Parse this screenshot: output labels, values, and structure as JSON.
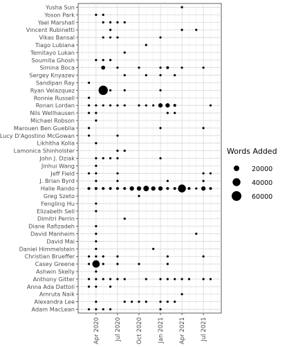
{
  "chart_data": {
    "type": "scatter",
    "title": "",
    "xlabel": "",
    "ylabel": "",
    "x_ticks": [
      "Apr 2020",
      "Jul 2020",
      "Oct 2020",
      "Jan 2021",
      "Apr 2021",
      "Jul 2021"
    ],
    "x_range": [
      "2020-02",
      "2021-09"
    ],
    "grid": true,
    "legend": {
      "title": "Words Added",
      "position": "right",
      "entries": [
        {
          "label": "20000",
          "value": 20000
        },
        {
          "label": "40000",
          "value": 40000
        },
        {
          "label": "60000",
          "value": 60000
        }
      ]
    },
    "categories": [
      "Yusha Sun",
      "Yoson Park",
      "Yael Marshall",
      "Vincent Rubinetti",
      "Vikas Bansal",
      "Tiago Lubiana",
      "Temitayo Lukan",
      "Soumita Ghosh",
      "Simina Boca",
      "Sergey Knyazev",
      "Sandipan Ray",
      "Ryan Velazquez",
      "Ronnie Russell",
      "Ronan Lordan",
      "Nils Wellhausen",
      "Michael Robson",
      "Marouen Ben Guebila",
      "Lucy D'Agostino McGowan",
      "Likhitha Kolla",
      "Lamonica Shinholster",
      "John J. Dziak",
      "Jinhui Wang",
      "Jeff Field",
      "J. Brian Byrd",
      "Halie Rando",
      "Greg Szeto",
      "Fengling Hu",
      "Elizabeth Sell",
      "Dimitri Perrin",
      "Diane Rafizadeh",
      "David Manheim",
      "David Mai",
      "Daniel Himmelstein",
      "Christian Brueffer",
      "Casey Greene",
      "Ashwin Skelly",
      "Anthony Gitter",
      "Anna Ada Dattoli",
      "Amruta Naik",
      "Alexandra Lee",
      "Adam MacLean"
    ],
    "points": [
      {
        "name": "Yusha Sun",
        "x": "2021-04",
        "y": 500
      },
      {
        "name": "Yoson Park",
        "x": "2020-04",
        "y": 500
      },
      {
        "name": "Yoson Park",
        "x": "2020-05",
        "y": 500
      },
      {
        "name": "Yael Marshall",
        "x": "2020-05",
        "y": 500
      },
      {
        "name": "Yael Marshall",
        "x": "2020-06",
        "y": 2500
      },
      {
        "name": "Yael Marshall",
        "x": "2020-07",
        "y": 2500
      },
      {
        "name": "Yael Marshall",
        "x": "2020-08",
        "y": 500
      },
      {
        "name": "Vincent Rubinetti",
        "x": "2020-06",
        "y": 500
      },
      {
        "name": "Vincent Rubinetti",
        "x": "2021-04",
        "y": 500
      },
      {
        "name": "Vincent Rubinetti",
        "x": "2021-06",
        "y": 500
      },
      {
        "name": "Vikas Bansal",
        "x": "2020-05",
        "y": 500
      },
      {
        "name": "Vikas Bansal",
        "x": "2020-06",
        "y": 500
      },
      {
        "name": "Vikas Bansal",
        "x": "2020-07",
        "y": 500
      },
      {
        "name": "Vikas Bansal",
        "x": "2021-01",
        "y": 500
      },
      {
        "name": "Tiago Lubiana",
        "x": "2020-11",
        "y": 500
      },
      {
        "name": "Temitayo Lukan",
        "x": "2020-08",
        "y": 500
      },
      {
        "name": "Soumita Ghosh",
        "x": "2020-04",
        "y": 500
      },
      {
        "name": "Soumita Ghosh",
        "x": "2020-05",
        "y": 2500
      },
      {
        "name": "Soumita Ghosh",
        "x": "2020-06",
        "y": 2500
      },
      {
        "name": "Simina Boca",
        "x": "2020-05",
        "y": 10000
      },
      {
        "name": "Simina Boca",
        "x": "2020-07",
        "y": 500
      },
      {
        "name": "Simina Boca",
        "x": "2020-10",
        "y": 500
      },
      {
        "name": "Simina Boca",
        "x": "2021-01",
        "y": 500
      },
      {
        "name": "Simina Boca",
        "x": "2021-02",
        "y": 5000
      },
      {
        "name": "Simina Boca",
        "x": "2021-04",
        "y": 500
      },
      {
        "name": "Simina Boca",
        "x": "2021-07",
        "y": 2500
      },
      {
        "name": "Sergey Knyazev",
        "x": "2020-08",
        "y": 500
      },
      {
        "name": "Sergey Knyazev",
        "x": "2020-11",
        "y": 500
      },
      {
        "name": "Sergey Knyazev",
        "x": "2021-01",
        "y": 500
      },
      {
        "name": "Sergey Knyazev",
        "x": "2021-03",
        "y": 500
      },
      {
        "name": "Sandipan Ray",
        "x": "2020-03",
        "y": 500
      },
      {
        "name": "Ryan Velazquez",
        "x": "2020-05",
        "y": 55000
      },
      {
        "name": "Ryan Velazquez",
        "x": "2020-06",
        "y": 500
      },
      {
        "name": "Ryan Velazquez",
        "x": "2020-08",
        "y": 500
      },
      {
        "name": "Ryan Velazquez",
        "x": "2021-01",
        "y": 500
      },
      {
        "name": "Ronnie Russell",
        "x": "2020-03",
        "y": 500
      },
      {
        "name": "Ronan Lordan",
        "x": "2020-03",
        "y": 500
      },
      {
        "name": "Ronan Lordan",
        "x": "2020-04",
        "y": 2500
      },
      {
        "name": "Ronan Lordan",
        "x": "2020-05",
        "y": 500
      },
      {
        "name": "Ronan Lordan",
        "x": "2020-06",
        "y": 500
      },
      {
        "name": "Ronan Lordan",
        "x": "2020-07",
        "y": 2500
      },
      {
        "name": "Ronan Lordan",
        "x": "2020-08",
        "y": 500
      },
      {
        "name": "Ronan Lordan",
        "x": "2020-10",
        "y": 500
      },
      {
        "name": "Ronan Lordan",
        "x": "2020-11",
        "y": 500
      },
      {
        "name": "Ronan Lordan",
        "x": "2020-12",
        "y": 500
      },
      {
        "name": "Ronan Lordan",
        "x": "2021-01",
        "y": 12000
      },
      {
        "name": "Ronan Lordan",
        "x": "2021-02",
        "y": 12000
      },
      {
        "name": "Ronan Lordan",
        "x": "2021-03",
        "y": 5000
      },
      {
        "name": "Ronan Lordan",
        "x": "2021-08",
        "y": 500
      },
      {
        "name": "Nils Wellhausen",
        "x": "2020-03",
        "y": 2500
      },
      {
        "name": "Nils Wellhausen",
        "x": "2020-04",
        "y": 500
      },
      {
        "name": "Nils Wellhausen",
        "x": "2021-02",
        "y": 2500
      },
      {
        "name": "Nils Wellhausen",
        "x": "2021-03",
        "y": 2500
      },
      {
        "name": "Michael Robson",
        "x": "2020-04",
        "y": 500
      },
      {
        "name": "Marouen Ben Guebila",
        "x": "2020-03",
        "y": 500
      },
      {
        "name": "Marouen Ben Guebila",
        "x": "2021-01",
        "y": 2500
      },
      {
        "name": "Marouen Ben Guebila",
        "x": "2021-07",
        "y": 500
      },
      {
        "name": "Lucy D'Agostino McGowan",
        "x": "2020-03",
        "y": 500
      },
      {
        "name": "Lucy D'Agostino McGowan",
        "x": "2020-07",
        "y": 500
      },
      {
        "name": "Likhitha Kolla",
        "x": "2020-04",
        "y": 500
      },
      {
        "name": "Lamonica Shinholster",
        "x": "2020-07",
        "y": 500
      },
      {
        "name": "Lamonica Shinholster",
        "x": "2020-08",
        "y": 500
      },
      {
        "name": "John J. Dziak",
        "x": "2020-04",
        "y": 500
      },
      {
        "name": "John J. Dziak",
        "x": "2020-05",
        "y": 500
      },
      {
        "name": "John J. Dziak",
        "x": "2020-06",
        "y": 500
      },
      {
        "name": "John J. Dziak",
        "x": "2020-07",
        "y": 2500
      },
      {
        "name": "John J. Dziak",
        "x": "2021-01",
        "y": 500
      },
      {
        "name": "Jinhui Wang",
        "x": "2020-04",
        "y": 500
      },
      {
        "name": "Jeff Field",
        "x": "2020-03",
        "y": 500
      },
      {
        "name": "Jeff Field",
        "x": "2020-04",
        "y": 500
      },
      {
        "name": "Jeff Field",
        "x": "2020-07",
        "y": 500
      },
      {
        "name": "Jeff Field",
        "x": "2021-07",
        "y": 500
      },
      {
        "name": "Jeff Field",
        "x": "2021-08",
        "y": 500
      },
      {
        "name": "J. Brian Byrd",
        "x": "2020-04",
        "y": 500
      },
      {
        "name": "J. Brian Byrd",
        "x": "2020-07",
        "y": 500
      },
      {
        "name": "J. Brian Byrd",
        "x": "2021-02",
        "y": 500
      },
      {
        "name": "J. Brian Byrd",
        "x": "2021-07",
        "y": 500
      },
      {
        "name": "Halie Rando",
        "x": "2020-03",
        "y": 5000
      },
      {
        "name": "Halie Rando",
        "x": "2020-04",
        "y": 5000
      },
      {
        "name": "Halie Rando",
        "x": "2020-05",
        "y": 5000
      },
      {
        "name": "Halie Rando",
        "x": "2020-06",
        "y": 5000
      },
      {
        "name": "Halie Rando",
        "x": "2020-07",
        "y": 5000
      },
      {
        "name": "Halie Rando",
        "x": "2020-08",
        "y": 5000
      },
      {
        "name": "Halie Rando",
        "x": "2020-09",
        "y": 12000
      },
      {
        "name": "Halie Rando",
        "x": "2020-10",
        "y": 12000
      },
      {
        "name": "Halie Rando",
        "x": "2020-11",
        "y": 20000
      },
      {
        "name": "Halie Rando",
        "x": "2020-12",
        "y": 12000
      },
      {
        "name": "Halie Rando",
        "x": "2021-01",
        "y": 12000
      },
      {
        "name": "Halie Rando",
        "x": "2021-02",
        "y": 5000
      },
      {
        "name": "Halie Rando",
        "x": "2021-03",
        "y": 5000
      },
      {
        "name": "Halie Rando",
        "x": "2021-04",
        "y": 40000
      },
      {
        "name": "Halie Rando",
        "x": "2021-05",
        "y": 5000
      },
      {
        "name": "Halie Rando",
        "x": "2021-06",
        "y": 2500
      },
      {
        "name": "Halie Rando",
        "x": "2021-07",
        "y": 12000
      },
      {
        "name": "Halie Rando",
        "x": "2021-08",
        "y": 5000
      },
      {
        "name": "Greg Szeto",
        "x": "2020-10",
        "y": 500
      },
      {
        "name": "Fengling Hu",
        "x": "2020-04",
        "y": 500
      },
      {
        "name": "Elizabeth Sell",
        "x": "2020-04",
        "y": 500
      },
      {
        "name": "Dimitri Perrin",
        "x": "2020-08",
        "y": 500
      },
      {
        "name": "Diane Rafizadeh",
        "x": "2020-04",
        "y": 500
      },
      {
        "name": "David Manheim",
        "x": "2020-04",
        "y": 500
      },
      {
        "name": "David Manheim",
        "x": "2021-06",
        "y": 500
      },
      {
        "name": "David Mai",
        "x": "2020-04",
        "y": 500
      },
      {
        "name": "Daniel Himmelstein",
        "x": "2020-04",
        "y": 500
      },
      {
        "name": "Daniel Himmelstein",
        "x": "2020-12",
        "y": 500
      },
      {
        "name": "Christian Brueffer",
        "x": "2020-03",
        "y": 500
      },
      {
        "name": "Christian Brueffer",
        "x": "2020-04",
        "y": 500
      },
      {
        "name": "Christian Brueffer",
        "x": "2020-05",
        "y": 500
      },
      {
        "name": "Christian Brueffer",
        "x": "2020-07",
        "y": 500
      },
      {
        "name": "Christian Brueffer",
        "x": "2021-02",
        "y": 500
      },
      {
        "name": "Christian Brueffer",
        "x": "2021-07",
        "y": 500
      },
      {
        "name": "Casey Greene",
        "x": "2020-03",
        "y": 2500
      },
      {
        "name": "Casey Greene",
        "x": "2020-04",
        "y": 35000
      },
      {
        "name": "Casey Greene",
        "x": "2020-05",
        "y": 500
      },
      {
        "name": "Casey Greene",
        "x": "2020-07",
        "y": 500
      },
      {
        "name": "Casey Greene",
        "x": "2020-10",
        "y": 500
      },
      {
        "name": "Casey Greene",
        "x": "2021-02",
        "y": 500
      },
      {
        "name": "Ashwin Skelly",
        "x": "2020-04",
        "y": 500
      },
      {
        "name": "Anthony Gitter",
        "x": "2020-03",
        "y": 2500
      },
      {
        "name": "Anthony Gitter",
        "x": "2020-04",
        "y": 2500
      },
      {
        "name": "Anthony Gitter",
        "x": "2020-05",
        "y": 500
      },
      {
        "name": "Anthony Gitter",
        "x": "2020-06",
        "y": 500
      },
      {
        "name": "Anthony Gitter",
        "x": "2020-07",
        "y": 500
      },
      {
        "name": "Anthony Gitter",
        "x": "2020-08",
        "y": 500
      },
      {
        "name": "Anthony Gitter",
        "x": "2020-11",
        "y": 2500
      },
      {
        "name": "Anthony Gitter",
        "x": "2021-01",
        "y": 500
      },
      {
        "name": "Anthony Gitter",
        "x": "2021-02",
        "y": 500
      },
      {
        "name": "Anthony Gitter",
        "x": "2021-03",
        "y": 500
      },
      {
        "name": "Anthony Gitter",
        "x": "2021-04",
        "y": 500
      },
      {
        "name": "Anthony Gitter",
        "x": "2021-05",
        "y": 2500
      },
      {
        "name": "Anthony Gitter",
        "x": "2021-07",
        "y": 500
      },
      {
        "name": "Anthony Gitter",
        "x": "2021-08",
        "y": 500
      },
      {
        "name": "Anna Ada Dattoli",
        "x": "2020-03",
        "y": 2500
      },
      {
        "name": "Anna Ada Dattoli",
        "x": "2020-04",
        "y": 2500
      },
      {
        "name": "Anna Ada Dattoli",
        "x": "2020-06",
        "y": 500
      },
      {
        "name": "Amruta Naik",
        "x": "2021-04",
        "y": 500
      },
      {
        "name": "Alexandra Lee",
        "x": "2020-04",
        "y": 500
      },
      {
        "name": "Alexandra Lee",
        "x": "2020-08",
        "y": 500
      },
      {
        "name": "Alexandra Lee",
        "x": "2020-09",
        "y": 500
      },
      {
        "name": "Alexandra Lee",
        "x": "2020-10",
        "y": 500
      },
      {
        "name": "Alexandra Lee",
        "x": "2020-11",
        "y": 500
      },
      {
        "name": "Alexandra Lee",
        "x": "2021-01",
        "y": 500
      },
      {
        "name": "Alexandra Lee",
        "x": "2021-02",
        "y": 500
      },
      {
        "name": "Alexandra Lee",
        "x": "2021-03",
        "y": 500
      },
      {
        "name": "Adam MacLean",
        "x": "2020-03",
        "y": 500
      },
      {
        "name": "Adam MacLean",
        "x": "2020-04",
        "y": 500
      },
      {
        "name": "Adam MacLean",
        "x": "2020-05",
        "y": 500
      },
      {
        "name": "Adam MacLean",
        "x": "2020-06",
        "y": 500
      },
      {
        "name": "Adam MacLean",
        "x": "2021-01",
        "y": 500
      }
    ]
  }
}
